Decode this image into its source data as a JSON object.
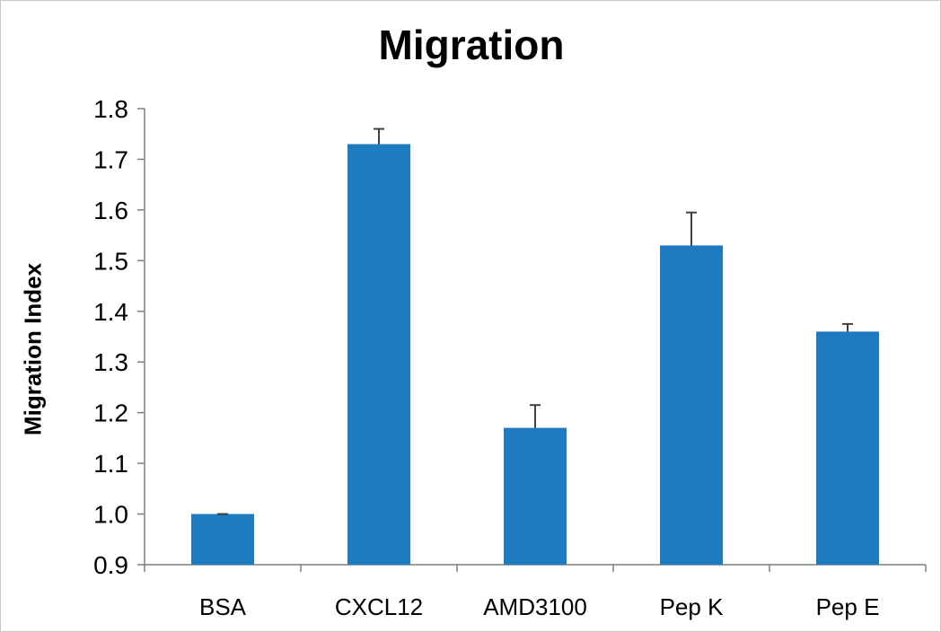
{
  "chart_data": {
    "type": "bar",
    "title": "Migration",
    "xlabel": "",
    "ylabel": "Migration Index",
    "categories": [
      "BSA",
      "CXCL12",
      "AMD3100",
      "Pep K",
      "Pep E"
    ],
    "values": [
      1.0,
      1.73,
      1.17,
      1.53,
      1.36
    ],
    "error_bars": [
      0.0,
      0.03,
      0.045,
      0.065,
      0.015
    ],
    "ylim": [
      0.9,
      1.8
    ],
    "yticks": [
      "0.9",
      "1.0",
      "1.1",
      "1.2",
      "1.3",
      "1.4",
      "1.5",
      "1.6",
      "1.7",
      "1.8"
    ],
    "grid": false,
    "legend": "none",
    "bar_color": "#1f7bbf",
    "error_bar_color": "#404040",
    "axis_color": "#7f7f7f"
  }
}
